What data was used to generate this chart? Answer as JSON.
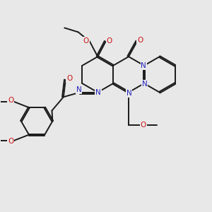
{
  "bg_color": "#e8e8e8",
  "bond_color": "#1a1a1a",
  "bond_width": 1.4,
  "N_color": "#2222bb",
  "O_color": "#cc1111",
  "fig_size": [
    3.0,
    3.0
  ],
  "dpi": 100,
  "xlim": [
    0,
    10
  ],
  "ylim": [
    0,
    10
  ]
}
